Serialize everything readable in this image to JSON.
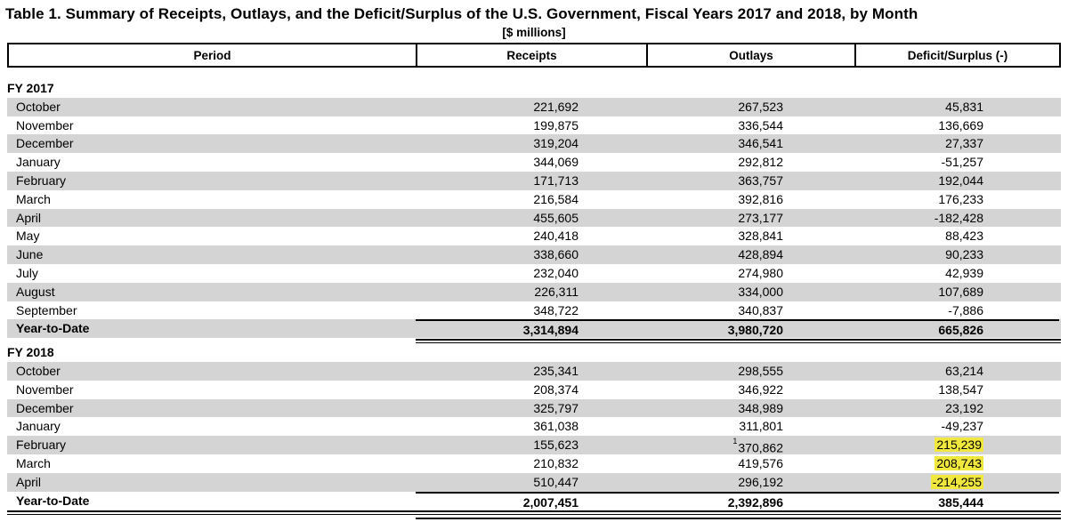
{
  "title": "Table 1. Summary of Receipts, Outlays, and the Deficit/Surplus of the U.S. Government, Fiscal Years 2017 and 2018, by Month",
  "subtitle": "[$ millions]",
  "columns": {
    "period": "Period",
    "receipts": "Receipts",
    "outlays": "Outlays",
    "deficit": "Deficit/Surplus (-)"
  },
  "colors": {
    "row_stripe": "#d4d4d4",
    "highlight": "#f0e83e",
    "border": "#000000"
  },
  "sections": [
    {
      "label": "FY 2017",
      "rows": [
        {
          "period": "October",
          "receipts": "221,692",
          "outlays": "267,523",
          "deficit": "45,831"
        },
        {
          "period": "November",
          "receipts": "199,875",
          "outlays": "336,544",
          "deficit": "136,669"
        },
        {
          "period": "December",
          "receipts": "319,204",
          "outlays": "346,541",
          "deficit": "27,337"
        },
        {
          "period": "January",
          "receipts": "344,069",
          "outlays": "292,812",
          "deficit": "-51,257"
        },
        {
          "period": "February",
          "receipts": "171,713",
          "outlays": "363,757",
          "deficit": "192,044"
        },
        {
          "period": "March",
          "receipts": "216,584",
          "outlays": "392,816",
          "deficit": "176,233"
        },
        {
          "period": "April",
          "receipts": "455,605",
          "outlays": "273,177",
          "deficit": "-182,428"
        },
        {
          "period": "May",
          "receipts": "240,418",
          "outlays": "328,841",
          "deficit": "88,423"
        },
        {
          "period": "June",
          "receipts": "338,660",
          "outlays": "428,894",
          "deficit": "90,233"
        },
        {
          "period": "July",
          "receipts": "232,040",
          "outlays": "274,980",
          "deficit": "42,939"
        },
        {
          "period": "August",
          "receipts": "226,311",
          "outlays": "334,000",
          "deficit": "107,689"
        },
        {
          "period": "September",
          "receipts": "348,722",
          "outlays": "340,837",
          "deficit": "-7,886"
        }
      ],
      "total": {
        "period": "Year-to-Date",
        "receipts": "3,314,894",
        "outlays": "3,980,720",
        "deficit": "665,826"
      }
    },
    {
      "label": "FY 2018",
      "rows": [
        {
          "period": "October",
          "receipts": "235,341",
          "outlays": "298,555",
          "deficit": "63,214"
        },
        {
          "period": "November",
          "receipts": "208,374",
          "outlays": "346,922",
          "deficit": "138,547"
        },
        {
          "period": "December",
          "receipts": "325,797",
          "outlays": "348,989",
          "deficit": "23,192"
        },
        {
          "period": "January",
          "receipts": "361,038",
          "outlays": "311,801",
          "deficit": "-49,237"
        },
        {
          "period": "February",
          "receipts": "155,623",
          "outlays": "370,862",
          "outlays_sup": "1",
          "deficit": "215,239",
          "deficit_highlight": true
        },
        {
          "period": "March",
          "receipts": "210,832",
          "outlays": "419,576",
          "deficit": "208,743",
          "deficit_highlight": true
        },
        {
          "period": "April",
          "receipts": "510,447",
          "outlays": "296,192",
          "deficit": "-214,255",
          "deficit_highlight": true
        }
      ],
      "total": {
        "period": "Year-to-Date",
        "receipts": "2,007,451",
        "outlays": "2,392,896",
        "deficit": "385,444"
      }
    }
  ]
}
